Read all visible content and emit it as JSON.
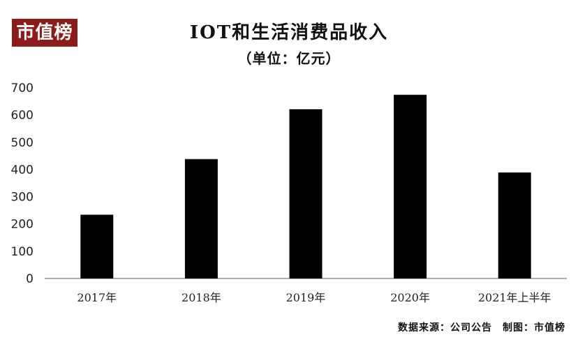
{
  "logo": {
    "text": "市值榜"
  },
  "source_note": "数据来源：公司公告　制图：市值榜",
  "colors": {
    "bar": "#000000",
    "logo_background": "#8f1a1a",
    "axis": "#555555"
  },
  "chart_data": {
    "type": "bar",
    "title": "IOT和生活消费品收入",
    "subtitle": "（单位：亿元）",
    "xlabel": "",
    "ylabel": "",
    "categories": [
      "2017年",
      "2018年",
      "2019年",
      "2020年",
      "2021年上半年"
    ],
    "series": [
      {
        "values": [
          234,
          438,
          621,
          674,
          389
        ]
      }
    ],
    "ylim": [
      0,
      700
    ],
    "yticks": [
      0,
      100,
      200,
      300,
      400,
      500,
      600,
      700
    ],
    "grid": false,
    "legend": "none"
  }
}
